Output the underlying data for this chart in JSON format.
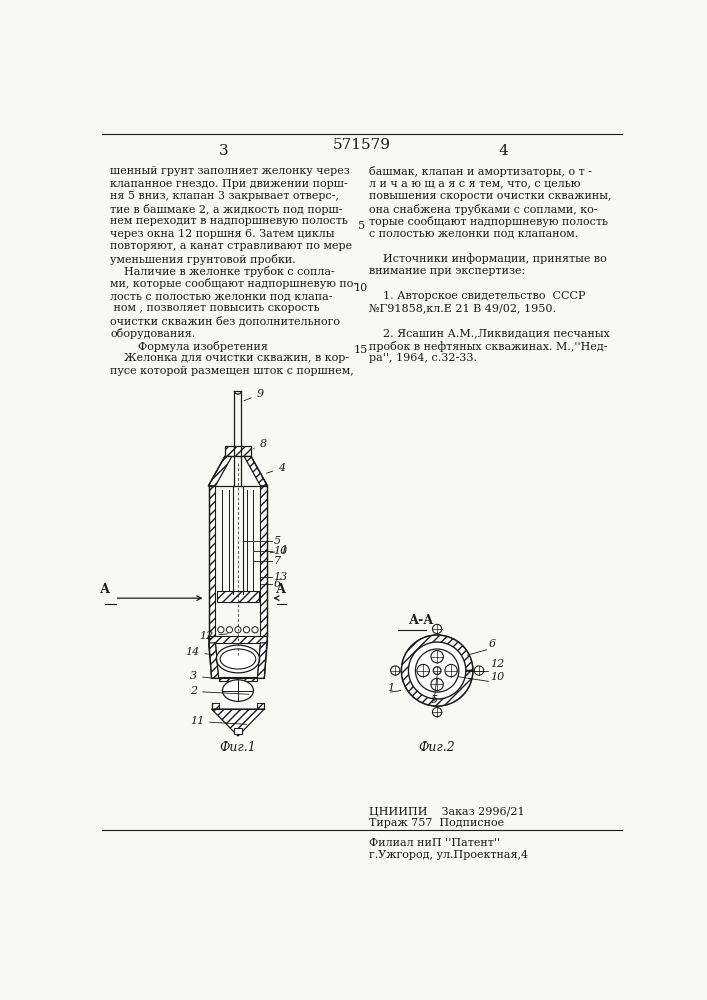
{
  "page_color": "#f8f8f4",
  "text_color": "#1a1a1a",
  "line_color": "#1a1a1a",
  "title_number": "571579",
  "page_left": "3",
  "page_right": "4",
  "text_left_col": [
    "шенный грунт заполняет желонку через",
    "клапанное гнездо. При движении порш-",
    "ня 5 вниз, клапан 3 закрывает отверс-,",
    "тие в башмаке 2, а жидкость под порш-",
    "нем переходит в надпоршневую полость",
    "через окна 12 поршня 6. Затем циклы",
    "повторяют, а канат стравливают по мере",
    "уменьшения грунтовой пробки.",
    "    Наличие в желонке трубок с сопла-",
    "ми, которые сообщают надпоршневую по-",
    "лость с полостью желонки под клапа-",
    " ном , позволяет повысить скорость",
    "очистки скважин без дополнительного",
    "оборудования.",
    "        Формула изобретения",
    "    Желонка для очистки скважин, в кор-",
    "пусе которой размещен шток с поршнем,"
  ],
  "text_right_col": [
    "башмак, клапан и амортизаторы, о т -",
    "л и ч а ю щ а я с я тем, что, с целью",
    "повышения скорости очистки скважины,",
    "она снабжена трубками с соплами, ко-",
    "торые сообщают надпоршневую полость",
    "с полостью желонки под клапаном.",
    "",
    "    Источники информации, принятые во",
    "внимание при экспертизе:",
    "",
    "    1. Авторское свидетельство  СССР",
    "№Γ91858,кл.Е 21 В 49/02, 1950.",
    "",
    "    2. Ясашин А.М.,Ликвидация песчаных",
    "пробок в нефтяных скважинах. М.,''Нед-",
    "ра'', 1964, с.32-33."
  ],
  "bottom_text_lines": [
    "ЦНИИПИ    Заказ 2996/21",
    "Тираж 757  Подписное",
    "",
    "Филиал ниП ''Патент''",
    "г.Ужгород, ул.Проектная,4"
  ]
}
